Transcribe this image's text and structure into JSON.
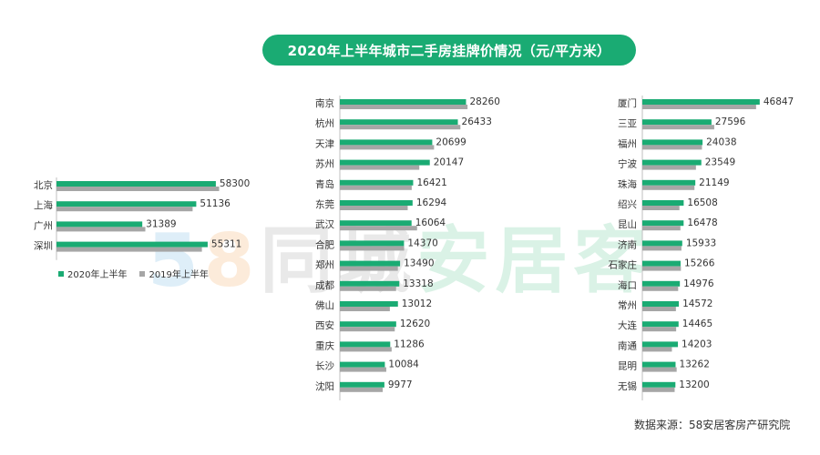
{
  "header": {
    "title": "2020年上半年城市二手房挂牌价情况（元/平方米）"
  },
  "watermark": {
    "num5": "5",
    "num8": "8",
    "tongcheng": "同城",
    "anjuke": "安居客"
  },
  "legend": {
    "s2020": "2020年上半年",
    "s2019": "2019年上半年"
  },
  "source": {
    "text": "数据来源：58安居客房产研究院"
  },
  "colors": {
    "s2020": "#1aab73",
    "s2019": "#a6a6a6",
    "title_bg": "#1aab73"
  },
  "chart_data": [
    {
      "type": "bar",
      "orientation": "horizontal",
      "categories": [
        "北京",
        "上海",
        "广州",
        "深圳"
      ],
      "series": [
        {
          "name": "2020年上半年",
          "values": [
            58300,
            51136,
            31389,
            55311
          ]
        },
        {
          "name": "2019年上半年",
          "values": [
            59500,
            49800,
            32500,
            53200
          ]
        }
      ],
      "xlim": [
        0,
        60000
      ]
    },
    {
      "type": "bar",
      "orientation": "horizontal",
      "categories": [
        "南京",
        "杭州",
        "天津",
        "苏州",
        "青岛",
        "东莞",
        "武汉",
        "合肥",
        "郑州",
        "成都",
        "佛山",
        "西安",
        "重庆",
        "长沙",
        "沈阳"
      ],
      "series": [
        {
          "name": "2020年上半年",
          "values": [
            28260,
            26433,
            20699,
            20147,
            16421,
            16294,
            16064,
            14370,
            13490,
            13318,
            13012,
            12620,
            11286,
            10084,
            9977
          ]
        },
        {
          "name": "2019年上半年",
          "values": [
            28600,
            27000,
            21100,
            17800,
            16100,
            15200,
            17300,
            14400,
            13000,
            12600,
            11200,
            12300,
            11600,
            10400,
            9600
          ]
        }
      ],
      "xlim": [
        0,
        30000
      ]
    },
    {
      "type": "bar",
      "orientation": "horizontal",
      "categories": [
        "厦门",
        "三亚",
        "福州",
        "宁波",
        "珠海",
        "绍兴",
        "昆山",
        "济南",
        "石家庄",
        "海口",
        "常州",
        "大连",
        "南通",
        "昆明",
        "无锡"
      ],
      "series": [
        {
          "name": "2020年上半年",
          "values": [
            46847,
            27596,
            24038,
            23549,
            21149,
            16508,
            16478,
            15933,
            15266,
            14976,
            14572,
            14465,
            14203,
            13262,
            13200
          ]
        },
        {
          "name": "2019年上半年",
          "values": [
            45400,
            28700,
            23800,
            21400,
            20800,
            14800,
            15200,
            15600,
            15400,
            14300,
            13400,
            13500,
            11800,
            13700,
            12900
          ]
        }
      ],
      "xlim": [
        0,
        48000
      ]
    }
  ]
}
